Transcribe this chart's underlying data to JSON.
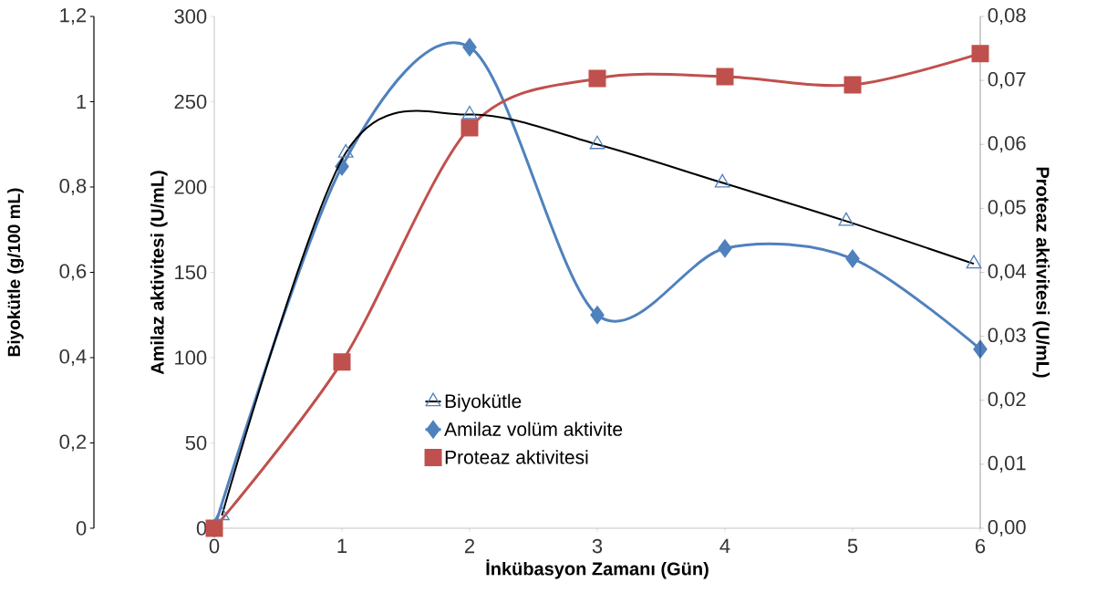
{
  "chart_data": {
    "type": "line",
    "xlabel": "İnkübasyon Zamanı (Gün)",
    "ylabel": "Amilaz aktivitesi (U/mL)",
    "y2label": "Proteaz aktivitesi (U/mL)",
    "y3label": "Biyokütle (g/100 mL)",
    "xlim": [
      0,
      6
    ],
    "xticks": [
      0,
      1,
      2,
      3,
      4,
      5,
      6
    ],
    "ylim": [
      0,
      300
    ],
    "yticks": [
      0,
      50,
      100,
      150,
      200,
      250,
      300
    ],
    "y2lim": [
      0,
      0.08
    ],
    "y2ticks": [
      {
        "value": 0,
        "label": "0,00"
      },
      {
        "value": 0.01,
        "label": "0,01"
      },
      {
        "value": 0.02,
        "label": "0,02"
      },
      {
        "value": 0.03,
        "label": "0,03"
      },
      {
        "value": 0.04,
        "label": "0,04"
      },
      {
        "value": 0.05,
        "label": "0,05"
      },
      {
        "value": 0.06,
        "label": "0,06"
      },
      {
        "value": 0.07,
        "label": "0,07"
      },
      {
        "value": 0.08,
        "label": "0,08"
      }
    ],
    "y3lim": [
      0,
      1.2
    ],
    "y3ticks": [
      0,
      {
        "value": 0.2,
        "label": "0,2"
      },
      {
        "value": 0.4,
        "label": "0,4"
      },
      {
        "value": 0.6,
        "label": "0,6"
      },
      {
        "value": 0.8,
        "label": "0,8"
      },
      1,
      {
        "value": 1.2,
        "label": "1,2"
      }
    ],
    "legend": "bottom",
    "series": [
      {
        "name": "Biyokütle",
        "color": "#000000",
        "marker": "triangle",
        "axis": "y3",
        "x": [
          0.06,
          1.03,
          2,
          3,
          3.98,
          4.95,
          5.95
        ],
        "values": [
          0.03,
          0.88,
          0.97,
          0.9,
          0.81,
          0.72,
          0.62
        ]
      },
      {
        "name": "Amilaz volüm aktivite",
        "color": "#4f81bd",
        "marker": "diamond",
        "axis": "y",
        "x": [
          0,
          1,
          2,
          3,
          4,
          5,
          6
        ],
        "values": [
          0,
          212,
          282,
          125,
          164,
          158,
          105
        ]
      },
      {
        "name": "Proteaz aktivitesi",
        "color": "#c0504d",
        "marker": "square",
        "axis": "y2",
        "x": [
          0,
          1,
          2,
          3,
          4,
          5,
          6
        ],
        "values": [
          0,
          0.026,
          0.0626,
          0.0703,
          0.0706,
          0.0693,
          0.0742
        ]
      }
    ]
  }
}
